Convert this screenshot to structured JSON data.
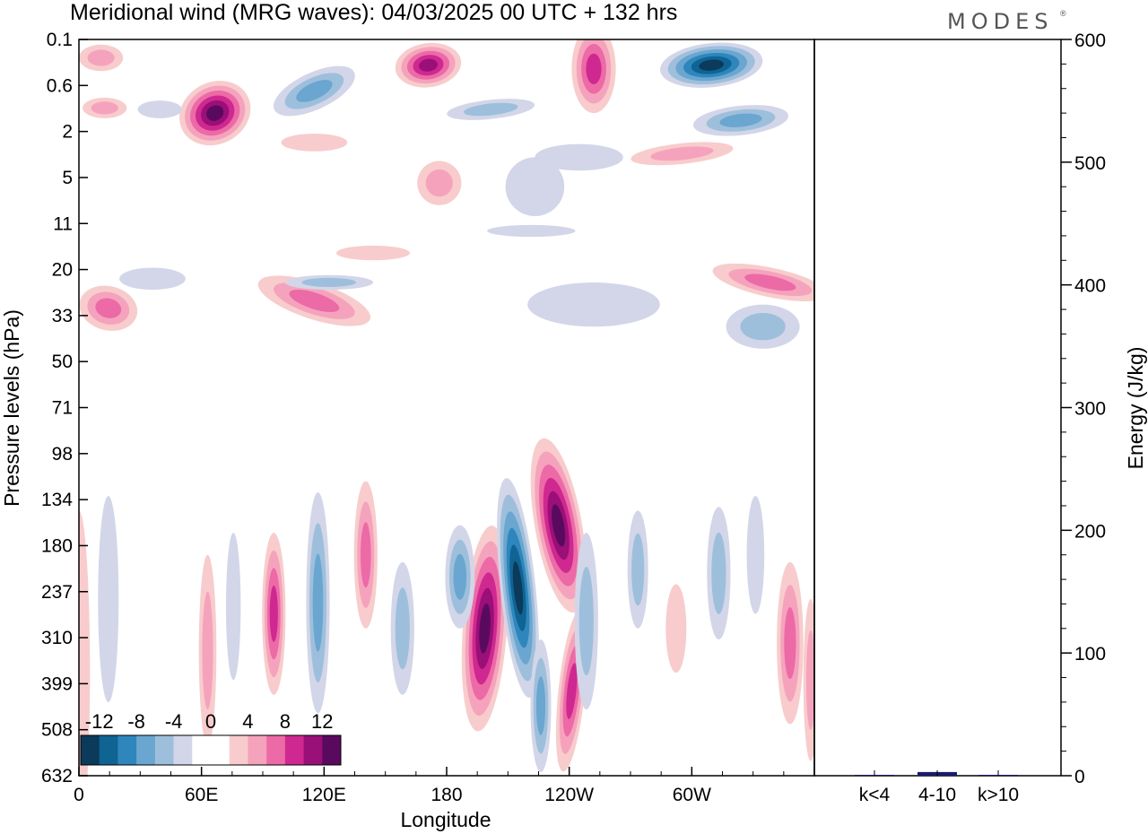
{
  "brand": "MODES",
  "chart_data": [
    {
      "type": "heatmap",
      "title": "Meridional wind (MRG waves):  04/03/2025  00 UTC  + 132 hrs",
      "xlabel": "Longitude",
      "ylabel": "Pressure levels (hPa)",
      "x_ticks": [
        "0",
        "60E",
        "120E",
        "180",
        "120W",
        "60W"
      ],
      "x_tick_degrees": [
        0,
        60,
        120,
        180,
        240,
        300
      ],
      "x_range_degrees": [
        0,
        360
      ],
      "y_ticks": [
        "0.1",
        "0.6",
        "2",
        "5",
        "11",
        "20",
        "33",
        "50",
        "71",
        "98",
        "134",
        "180",
        "237",
        "310",
        "399",
        "508",
        "632"
      ],
      "colorbar": {
        "labels": [
          "-12",
          "-8",
          "-4",
          "0",
          "4",
          "8",
          "12"
        ],
        "levels": [
          -12,
          -10,
          -8,
          -6,
          -4,
          -2,
          0,
          2,
          4,
          6,
          8,
          10,
          12
        ],
        "colors": [
          "#0b3a5a",
          "#0f6493",
          "#2e86bd",
          "#6aa6cf",
          "#9ebfdc",
          "#d2d6e8",
          "#ffffff",
          "#ffffff",
          "#f8cccc",
          "#f5a3bd",
          "#ec6aa6",
          "#cf2890",
          "#9a0f78",
          "#5a0a5e"
        ]
      },
      "features": [
        {
          "sign": "positive",
          "lon_center": 190,
          "level_center_hPa": 237,
          "peak": 12
        },
        {
          "sign": "negative",
          "lon_center": 204,
          "level_center_hPa": 180,
          "peak": -12
        },
        {
          "sign": "positive",
          "lon_center": 230,
          "level_center_hPa": 134,
          "peak": 13
        },
        {
          "sign": "positive",
          "lon_center": 232,
          "level_center_hPa": 440,
          "peak": 8
        },
        {
          "sign": "negative",
          "lon_center": 213,
          "level_center_hPa": 420,
          "peak": -6
        },
        {
          "sign": "positive",
          "lon_center": 65,
          "level_center_hPa": 1.2,
          "peak": 12
        },
        {
          "sign": "negative",
          "lon_center": 310,
          "level_center_hPa": 0.2,
          "peak": -10
        },
        {
          "sign": "positive",
          "lon_center": 170,
          "level_center_hPa": 0.2,
          "peak": 10
        },
        {
          "sign": "positive",
          "lon_center": 250,
          "level_center_hPa": 0.4,
          "peak": 8
        }
      ]
    },
    {
      "type": "bar",
      "ylabel": "Energy (J/kg)",
      "categories": [
        "k<4",
        "4-10",
        "k>10"
      ],
      "values": [
        0.5,
        3,
        0.5
      ],
      "ylim": [
        0,
        600
      ],
      "y_ticks": [
        "0",
        "100",
        "200",
        "300",
        "400",
        "500",
        "600"
      ],
      "bar_color": "#1a1a6e"
    }
  ]
}
